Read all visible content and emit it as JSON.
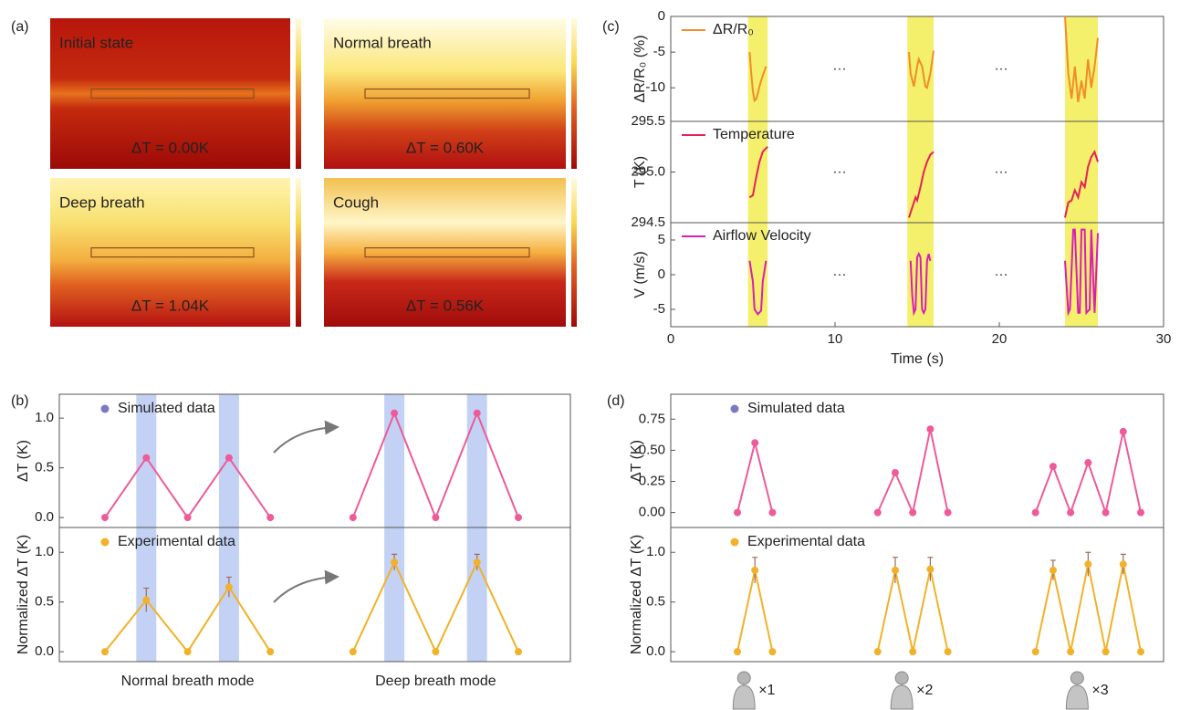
{
  "chart_data": [
    {
      "type": "heatmap",
      "panel": "(a)",
      "images": [
        {
          "title": "Initial state",
          "annotation": "ΔT = 0.00K"
        },
        {
          "title": "Normal breath",
          "annotation": "ΔT = 0.60K"
        },
        {
          "title": "Deep breath",
          "annotation": "ΔT = 1.04K"
        },
        {
          "title": "Cough",
          "annotation": "ΔT = 0.56K"
        }
      ]
    },
    {
      "type": "line",
      "panel": "(c)",
      "xlabel": "Time (s)",
      "xlim": [
        0,
        30
      ],
      "xticks": [
        0,
        10,
        20,
        30
      ],
      "highlight_ranges": [
        [
          4.7,
          5.9
        ],
        [
          14.4,
          16
        ],
        [
          24,
          26
        ]
      ],
      "highlight_color": "#f4f06c",
      "subplots": [
        {
          "ylabel": "ΔR/R₀ (%)",
          "ylim": [
            -14.7,
            0
          ],
          "yticks": [
            -10,
            -5,
            0
          ],
          "annotations": [
            "···",
            "···"
          ],
          "series": [
            {
              "name": "ΔR/R₀",
              "color": "#f28c28",
              "x": [
                4.8,
                4.9,
                5.0,
                5.1,
                5.2,
                5.3,
                5.4,
                5.5,
                5.6,
                5.8,
                10,
                14.5,
                14.6,
                14.8,
                15.0,
                15.1,
                15.3,
                15.5,
                15.6,
                15.8,
                16.0,
                20,
                24.0,
                24.2,
                24.4,
                24.6,
                24.8,
                25.0,
                25.2,
                25.4,
                25.6,
                25.8,
                26.0
              ],
              "values": [
                -5,
                -8,
                -10.5,
                -11.8,
                -11.6,
                -10.8,
                -9.8,
                -9,
                -8.3,
                -7,
                null,
                -5,
                -8,
                -9.8,
                -7,
                -6,
                -7,
                -9.8,
                -10,
                -8,
                -4.8,
                null,
                0,
                -8,
                -11.5,
                -7,
                -12,
                -9,
                -11.5,
                -6,
                -10,
                -7,
                -3
              ]
            }
          ]
        },
        {
          "ylabel": "T (K)",
          "ylim": [
            294.5,
            295.5
          ],
          "yticks": [
            294.5,
            {
              "value": 295,
              "label": "295.0"
            },
            295.5
          ],
          "annotations": [
            "···",
            "···"
          ],
          "series": [
            {
              "name": "Temperature",
              "color": "#e8205a",
              "x": [
                4.8,
                5.0,
                5.2,
                5.4,
                5.6,
                5.9,
                10,
                14.5,
                14.7,
                14.9,
                15.0,
                15.2,
                15.4,
                15.6,
                15.8,
                16.0,
                20,
                24.0,
                24.2,
                24.4,
                24.6,
                24.8,
                25.0,
                25.2,
                25.4,
                25.6,
                25.8,
                26.0
              ],
              "values": [
                294.75,
                294.77,
                294.95,
                295.1,
                295.2,
                295.25,
                null,
                294.55,
                294.65,
                294.75,
                294.72,
                294.85,
                295.0,
                295.1,
                295.17,
                295.2,
                null,
                294.55,
                294.7,
                294.72,
                294.82,
                294.75,
                294.9,
                294.85,
                295.05,
                295.15,
                295.2,
                295.1
              ]
            }
          ]
        },
        {
          "ylabel": "V (m/s)",
          "ylim": [
            -7.5,
            7.5
          ],
          "yticks": [
            -5,
            0,
            5
          ],
          "annotations": [
            "···",
            "···"
          ],
          "series": [
            {
              "name": "Airflow Velocity",
              "color": "#d81eb8",
              "x": [
                4.8,
                5.0,
                5.1,
                5.3,
                5.5,
                5.6,
                5.8,
                10,
                14.6,
                14.7,
                14.8,
                14.9,
                15.0,
                15.1,
                15.2,
                15.3,
                15.4,
                15.5,
                15.6,
                15.7,
                15.8,
                20,
                24.0,
                24.2,
                24.3,
                24.5,
                24.6,
                24.8,
                24.9,
                25.0,
                25.2,
                25.3,
                25.5,
                25.6,
                25.8,
                26.0
              ],
              "values": [
                2,
                -1,
                -5,
                -5.7,
                -5.2,
                -1,
                2,
                null,
                2,
                -3,
                -5.5,
                -5,
                2.5,
                3,
                2.5,
                -5,
                -5.5,
                -5,
                2,
                3,
                2,
                null,
                2,
                -5.5,
                -5,
                6.5,
                6.5,
                -5.5,
                -5.5,
                6.5,
                6.5,
                -5.5,
                -5,
                6.5,
                -5.5,
                6
              ]
            }
          ]
        }
      ]
    },
    {
      "type": "line",
      "panel": "(b)",
      "categories": [
        null,
        null,
        "Normal breath mode",
        null,
        null,
        null,
        null,
        null,
        "Deep breath mode",
        null,
        null
      ],
      "highlight": [
        1,
        3,
        7,
        9
      ],
      "highlight_color": "#a9bff0",
      "subplots": [
        {
          "ylabel": "ΔT (K)",
          "ylim": [
            -0.1,
            1.24
          ],
          "yticks": [
            {
              "value": 0,
              "label": "0.0"
            },
            0.5,
            {
              "value": 1,
              "label": "1.0"
            }
          ],
          "series": [
            {
              "name": "Simulated data",
              "color": "#ee5a9a",
              "legend_color": "#7b78c8",
              "values": [
                0,
                0.6,
                0,
                0.6,
                0,
                null,
                0,
                1.05,
                0,
                1.05,
                0
              ]
            }
          ]
        },
        {
          "ylabel": "Normalized ΔT (K)",
          "ylim": [
            -0.1,
            1.25
          ],
          "yticks": [
            {
              "value": 0,
              "label": "0.0"
            },
            0.5,
            {
              "value": 1,
              "label": "1.0"
            }
          ],
          "series": [
            {
              "name": "Experimental data",
              "color": "#f2b128",
              "legend_color": "#f2b128",
              "values": [
                0,
                0.52,
                0,
                0.65,
                0,
                null,
                0,
                0.9,
                0,
                0.9,
                0
              ],
              "errors": [
                null,
                0.12,
                null,
                0.1,
                null,
                null,
                null,
                0.08,
                null,
                0.08,
                null
              ]
            }
          ]
        }
      ]
    },
    {
      "type": "line",
      "panel": "(d)",
      "categories": [
        null,
        "×1",
        null,
        null,
        null,
        null,
        null,
        null,
        null,
        null,
        "×2",
        null,
        null,
        null,
        null,
        null,
        null,
        null,
        null,
        null,
        "×3",
        null,
        null,
        null
      ],
      "subplots": [
        {
          "ylabel": "ΔT (K)",
          "ylim": [
            -0.12,
            0.95
          ],
          "yticks": [
            {
              "value": 0,
              "label": "0.00"
            },
            0.25,
            {
              "value": 0.5,
              "label": "0.50"
            },
            0.75
          ],
          "series": [
            {
              "name": "Simulated data",
              "color": "#ee5a9a",
              "legend_color": "#7b78c8",
              "values": [
                0,
                0.56,
                0,
                null,
                null,
                null,
                null,
                null,
                0,
                0.32,
                0,
                0.67,
                0,
                null,
                null,
                null,
                null,
                0,
                0.37,
                0,
                0.4,
                0,
                0.65,
                0
              ]
            }
          ]
        },
        {
          "ylabel": "Normalized ΔT (K)",
          "ylim": [
            -0.1,
            1.25
          ],
          "yticks": [
            {
              "value": 0,
              "label": "0.0"
            },
            0.5,
            {
              "value": 1,
              "label": "1.0"
            }
          ],
          "series": [
            {
              "name": "Experimental data",
              "color": "#f2b128",
              "legend_color": "#f2b128",
              "values": [
                0,
                0.82,
                0,
                null,
                null,
                null,
                null,
                null,
                0,
                0.82,
                0,
                0.83,
                0,
                null,
                null,
                null,
                null,
                0,
                0.82,
                0,
                0.88,
                0,
                0.88,
                0
              ],
              "errors": [
                null,
                0.13,
                null,
                null,
                null,
                null,
                null,
                null,
                null,
                0.13,
                null,
                0.12,
                null,
                null,
                null,
                null,
                null,
                null,
                0.1,
                null,
                0.12,
                null,
                0.1,
                null
              ]
            }
          ]
        }
      ]
    }
  ]
}
